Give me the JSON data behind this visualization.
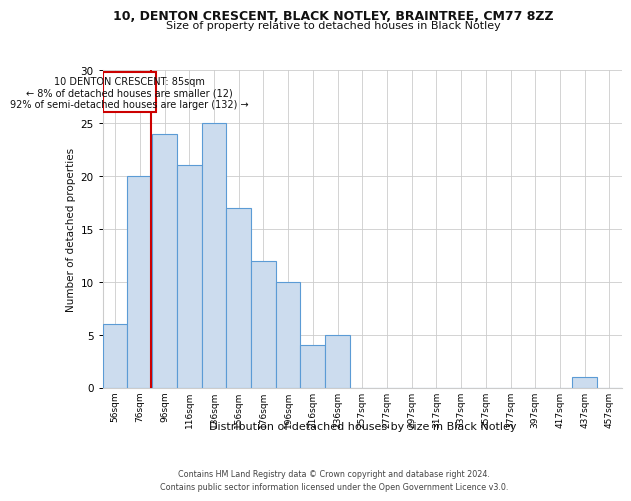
{
  "title_line1": "10, DENTON CRESCENT, BLACK NOTLEY, BRAINTREE, CM77 8ZZ",
  "title_line2": "Size of property relative to detached houses in Black Notley",
  "xlabel": "Distribution of detached houses by size in Black Notley",
  "ylabel": "Number of detached properties",
  "annotation_line1": "10 DENTON CRESCENT: 85sqm",
  "annotation_line2": "← 8% of detached houses are smaller (12)",
  "annotation_line3": "92% of semi-detached houses are larger (132) →",
  "bar_labels": [
    "56sqm",
    "76sqm",
    "96sqm",
    "116sqm",
    "136sqm",
    "156sqm",
    "176sqm",
    "196sqm",
    "216sqm",
    "236sqm",
    "257sqm",
    "277sqm",
    "297sqm",
    "317sqm",
    "337sqm",
    "357sqm",
    "377sqm",
    "397sqm",
    "417sqm",
    "437sqm",
    "457sqm"
  ],
  "bar_values": [
    6,
    20,
    24,
    21,
    25,
    17,
    12,
    10,
    4,
    5,
    0,
    0,
    0,
    0,
    0,
    0,
    0,
    0,
    0,
    1,
    0
  ],
  "bar_color": "#ccdcee",
  "bar_edge_color": "#5b9bd5",
  "vline_color": "#cc0000",
  "annotation_box_color": "#cc0000",
  "background_color": "#ffffff",
  "grid_color": "#cccccc",
  "ylim": [
    0,
    30
  ],
  "yticks": [
    0,
    5,
    10,
    15,
    20,
    25,
    30
  ],
  "footer_line1": "Contains HM Land Registry data © Crown copyright and database right 2024.",
  "footer_line2": "Contains public sector information licensed under the Open Government Licence v3.0."
}
